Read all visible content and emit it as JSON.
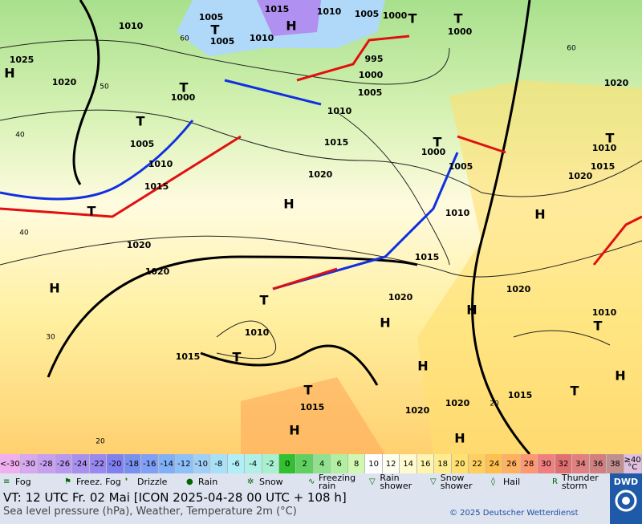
{
  "map_labels": [
    "1005",
    "1015",
    "1010",
    "1005",
    "1000",
    "1010",
    "1005",
    "1010",
    "995",
    "1000",
    "1005",
    "1010",
    "1025",
    "1020",
    "1000",
    "1005",
    "1010",
    "1015",
    "1015",
    "1020",
    "1000",
    "1005",
    "1010",
    "1015",
    "1020",
    "1020",
    "1020",
    "1020",
    "1020",
    "1020",
    "1010",
    "1015",
    "1010",
    "1010",
    "1015",
    "1015",
    "1015",
    "1020",
    "1020",
    "1000",
    "H",
    "H",
    "H",
    "H",
    "H",
    "H",
    "H",
    "H",
    "H",
    "H",
    "H",
    "T",
    "T",
    "T",
    "T",
    "T",
    "T",
    "T",
    "T",
    "T",
    "T",
    "T",
    "T",
    "T",
    "60",
    "50",
    "40",
    "40",
    "30",
    "20",
    "20",
    "60"
  ],
  "legend": {
    "scale": [
      {
        "label": "<-30",
        "color": "#f0b0f0"
      },
      {
        "label": "-30",
        "color": "#d8a8f0"
      },
      {
        "label": "-28",
        "color": "#c8a0f0"
      },
      {
        "label": "-26",
        "color": "#b898f0"
      },
      {
        "label": "-24",
        "color": "#a890f0"
      },
      {
        "label": "-22",
        "color": "#9888f0"
      },
      {
        "label": "-20",
        "color": "#8080f0"
      },
      {
        "label": "-18",
        "color": "#7890f0"
      },
      {
        "label": "-16",
        "color": "#80a0f8"
      },
      {
        "label": "-14",
        "color": "#80b0f8"
      },
      {
        "label": "-12",
        "color": "#90c0f8"
      },
      {
        "label": "-10",
        "color": "#a0d0f8"
      },
      {
        "label": "-8",
        "color": "#a8e0f8"
      },
      {
        "label": "-6",
        "color": "#b0eef8"
      },
      {
        "label": "-4",
        "color": "#b0f0e8"
      },
      {
        "label": "-2",
        "color": "#a8f0d0"
      },
      {
        "label": "0",
        "color": "#30c030"
      },
      {
        "label": "2",
        "color": "#60d060"
      },
      {
        "label": "4",
        "color": "#90e090"
      },
      {
        "label": "6",
        "color": "#b0f0a0"
      },
      {
        "label": "8",
        "color": "#d0f8b0"
      },
      {
        "label": "10",
        "color": "#ffffff"
      },
      {
        "label": "12",
        "color": "#fffff0"
      },
      {
        "label": "14",
        "color": "#fffad0"
      },
      {
        "label": "16",
        "color": "#fff4b0"
      },
      {
        "label": "18",
        "color": "#ffec90"
      },
      {
        "label": "20",
        "color": "#ffe070"
      },
      {
        "label": "22",
        "color": "#ffd060"
      },
      {
        "label": "24",
        "color": "#ffc050"
      },
      {
        "label": "26",
        "color": "#ffb060"
      },
      {
        "label": "28",
        "color": "#ff9870"
      },
      {
        "label": "30",
        "color": "#f08080"
      },
      {
        "label": "32",
        "color": "#e07070"
      },
      {
        "label": "34",
        "color": "#e08080"
      },
      {
        "label": "36",
        "color": "#d08080"
      },
      {
        "label": "38",
        "color": "#c09090"
      },
      {
        "label": "≥40 °C",
        "color": "#e0c0e0"
      }
    ],
    "symbols": [
      "Fog",
      "Freez. Fog",
      "Drizzle",
      "Rain",
      "Snow",
      "Freezing rain",
      "Rain shower",
      "Snow shower",
      "Hail",
      "Thunder storm"
    ]
  },
  "footer": {
    "valid_time": "VT: 12 UTC Fr.  02 Mai [ICON 2025-04-28  00 UTC + 108 h]",
    "description": "Sea level pressure (hPa), Weather, Temperature 2m (°C)",
    "copyright": "© 2025 Deutscher Wetterdienst",
    "logo": "DWD"
  }
}
